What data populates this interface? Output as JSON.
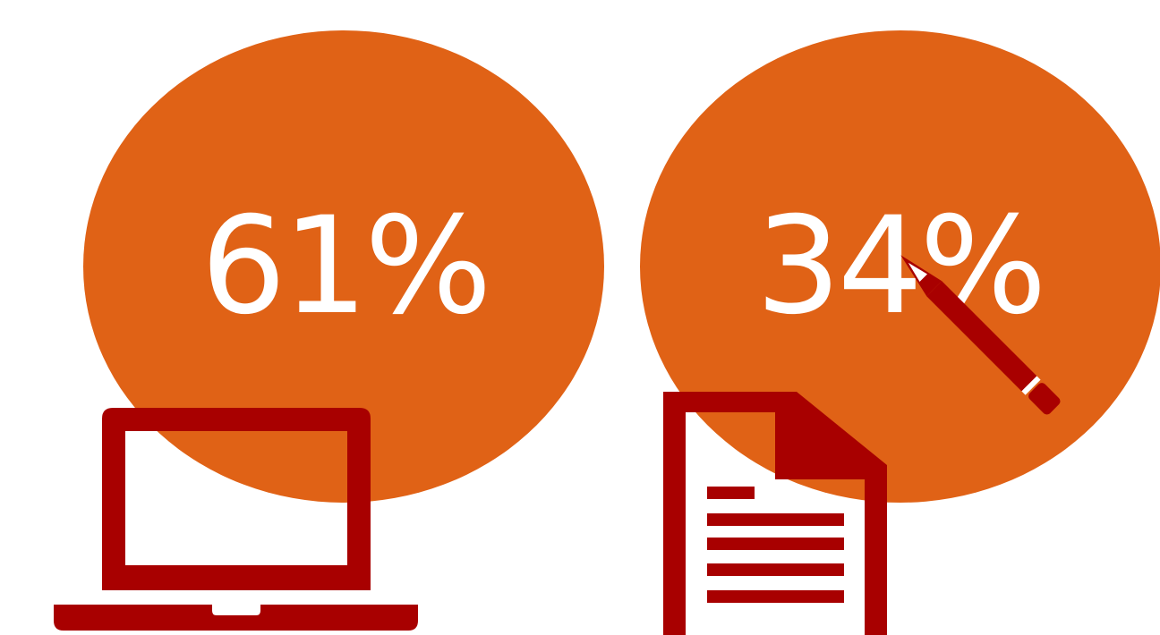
{
  "stats": [
    {
      "value": "61%",
      "icon": "laptop-icon"
    },
    {
      "value": "34%",
      "icon": "document-pencil-icon"
    }
  ],
  "colors": {
    "bubble": "#e06216",
    "icon": "#a80000",
    "text": "#ffffff"
  }
}
